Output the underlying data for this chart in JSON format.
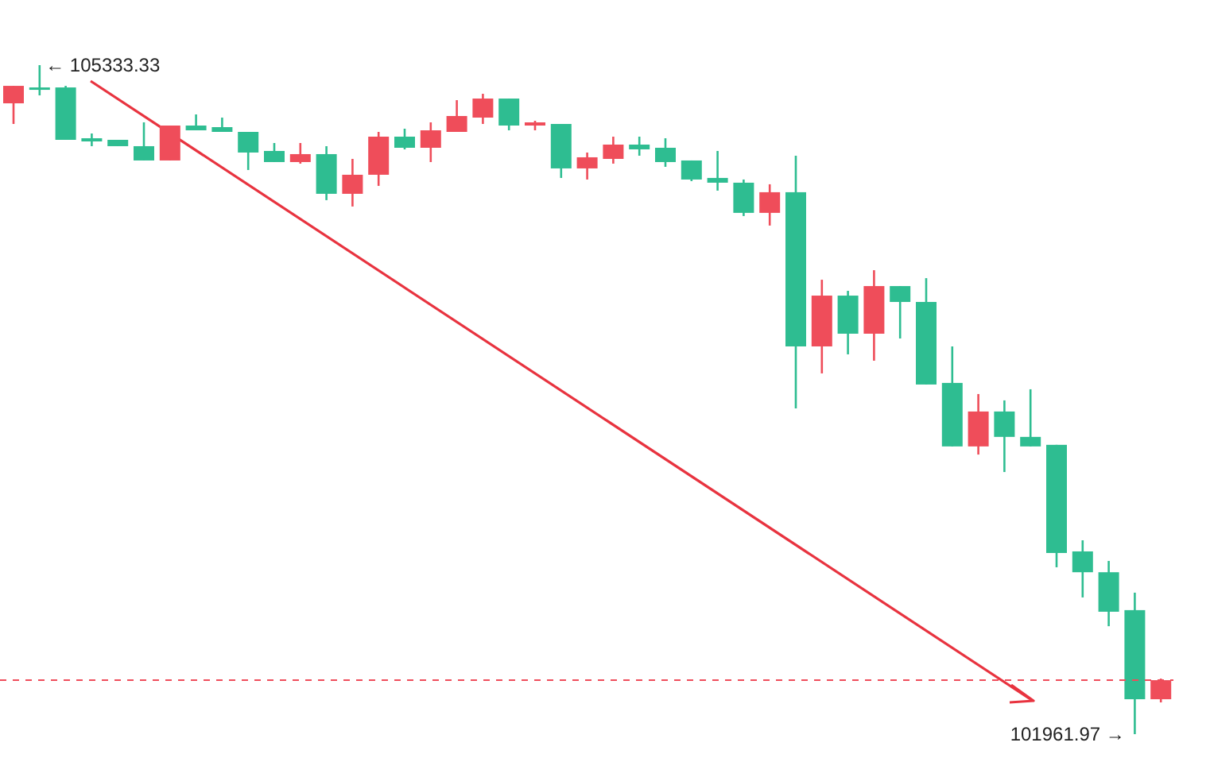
{
  "chart_data": {
    "type": "candlestick",
    "categories": [
      null,
      null,
      null,
      null,
      null,
      null,
      null,
      null,
      null,
      null,
      null,
      null,
      null,
      null,
      null,
      null,
      null,
      null,
      null,
      null,
      null,
      null,
      null,
      null,
      null,
      null,
      null,
      null,
      null,
      null,
      null,
      null,
      null,
      null,
      null,
      null,
      null,
      null,
      null,
      null,
      null,
      null,
      null,
      null,
      null
    ],
    "ohlc": [
      [
        105141,
        105229,
        105037,
        105229
      ],
      [
        105221,
        105333.33,
        105181,
        105213
      ],
      [
        105221,
        105229,
        104957,
        104957
      ],
      [
        104965,
        104989,
        104925,
        104949
      ],
      [
        104957,
        104957,
        104925,
        104925
      ],
      [
        104925,
        105045,
        104853,
        104853
      ],
      [
        104853,
        105029,
        104853,
        105029
      ],
      [
        105029,
        105085,
        105005,
        105005
      ],
      [
        105021,
        105069,
        104997,
        104997
      ],
      [
        104997,
        104997,
        104805,
        104893
      ],
      [
        104901,
        104941,
        104845,
        104845
      ],
      [
        104845,
        104941,
        104837,
        104885
      ],
      [
        104885,
        104925,
        104653,
        104685
      ],
      [
        104685,
        104861,
        104621,
        104781
      ],
      [
        104781,
        104997,
        104725,
        104973
      ],
      [
        104973,
        105013,
        104909,
        104917
      ],
      [
        104917,
        105045,
        104845,
        105005
      ],
      [
        104997,
        105157,
        104997,
        105077
      ],
      [
        105069,
        105189,
        105037,
        105165
      ],
      [
        105165,
        105165,
        105005,
        105029
      ],
      [
        105029,
        105053,
        105005,
        105045
      ],
      [
        105037,
        105037,
        104765,
        104813
      ],
      [
        104813,
        104893,
        104757,
        104869
      ],
      [
        104861,
        104973,
        104837,
        104933
      ],
      [
        104933,
        104973,
        104877,
        104909
      ],
      [
        104917,
        104965,
        104821,
        104845
      ],
      [
        104853,
        104853,
        104749,
        104757
      ],
      [
        104765,
        104901,
        104701,
        104741
      ],
      [
        104741,
        104757,
        104573,
        104589
      ],
      [
        104589,
        104733,
        104525,
        104693
      ],
      [
        104693,
        104877,
        103604,
        103916
      ],
      [
        103916,
        104252,
        103780,
        104172
      ],
      [
        104172,
        104196,
        103876,
        103980
      ],
      [
        103980,
        104300,
        103844,
        104220
      ],
      [
        104220,
        104220,
        103956,
        104140
      ],
      [
        104140,
        104260,
        103724,
        103724
      ],
      [
        103732,
        103916,
        103412,
        103412
      ],
      [
        103412,
        103676,
        103371,
        103588
      ],
      [
        103588,
        103644,
        103283,
        103460
      ],
      [
        103460,
        103700,
        103412,
        103412
      ],
      [
        103420,
        103420,
        102803,
        102875
      ],
      [
        102883,
        102939,
        102651,
        102778
      ],
      [
        102778,
        102835,
        102506,
        102579
      ],
      [
        102587,
        102675,
        101961.97,
        102138
      ],
      [
        102138,
        102242,
        102122,
        102234
      ]
    ],
    "colors": [
      "#ef4d5a",
      "#2ebd91",
      "#2ebd91",
      "#2ebd91",
      "#2ebd91",
      "#2ebd91",
      "#ef4d5a",
      "#2ebd91",
      "#2ebd91",
      "#2ebd91",
      "#2ebd91",
      "#ef4d5a",
      "#2ebd91",
      "#ef4d5a",
      "#ef4d5a",
      "#2ebd91",
      "#ef4d5a",
      "#ef4d5a",
      "#ef4d5a",
      "#2ebd91",
      "#ef4d5a",
      "#2ebd91",
      "#ef4d5a",
      "#ef4d5a",
      "#2ebd91",
      "#2ebd91",
      "#2ebd91",
      "#2ebd91",
      "#2ebd91",
      "#ef4d5a",
      "#2ebd91",
      "#ef4d5a",
      "#2ebd91",
      "#ef4d5a",
      "#2ebd91",
      "#2ebd91",
      "#2ebd91",
      "#ef4d5a",
      "#2ebd91",
      "#2ebd91",
      "#2ebd91",
      "#2ebd91",
      "#2ebd91",
      "#2ebd91",
      "#ef4d5a"
    ],
    "ref_lines": [
      {
        "axis": "y",
        "value": 102234,
        "color": "#ef4d5a",
        "line_style": "dashed"
      }
    ],
    "annotations": [
      "← 105333.33",
      "101961.97 →"
    ],
    "tick_labels": false
  }
}
